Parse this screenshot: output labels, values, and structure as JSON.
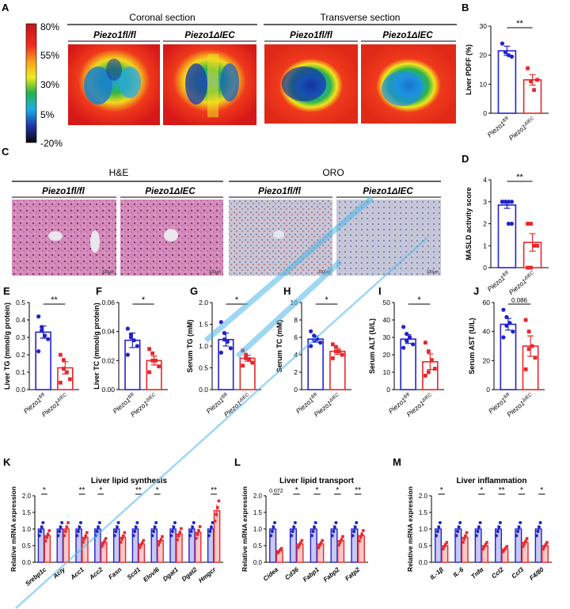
{
  "panels": {
    "A": {
      "letter": "A",
      "colorbar_ticks": [
        "80%",
        "55%",
        "30%",
        "5%",
        "-20%"
      ],
      "coronal_title": "Coronal section",
      "transverse_title": "Transverse section",
      "genotypes": [
        "Piezo1fl/fl",
        "Piezo1ΔIEC",
        "Piezo1fl/fl",
        "Piezo1ΔIEC"
      ]
    },
    "C": {
      "letter": "C",
      "he_title": "H&E",
      "oro_title": "ORO",
      "genotypes": [
        "Piezo1fl/fl",
        "Piezo1ΔIEC",
        "Piezo1fl/fl",
        "Piezo1ΔIEC"
      ],
      "scale_bars": [
        "100μm",
        "100μm",
        "100μm",
        "100μm"
      ]
    },
    "K_title": "Liver lipid synthesis",
    "L_title": "Liver lipid transport",
    "M_title": "Liver inflammation"
  },
  "chart_data": [
    {
      "id": "B",
      "type": "bar",
      "ylabel": "Liver PDFF (%)",
      "ylim": [
        0,
        30
      ],
      "yticks": [
        "0",
        "10",
        "20",
        "30"
      ],
      "categories": [
        "Piezo1fl/fl",
        "Piezo1ΔIEC"
      ],
      "values": [
        21.5,
        11.5
      ],
      "sem": [
        1.6,
        1.8
      ],
      "points": [
        [
          24,
          21,
          20,
          19.5
        ],
        [
          15.5,
          11,
          8,
          11.5
        ]
      ],
      "sig": "**"
    },
    {
      "id": "D",
      "type": "bar",
      "ylabel": "MASLD activity score",
      "ylim": [
        0,
        4
      ],
      "yticks": [
        "0",
        "1",
        "2",
        "3",
        "4"
      ],
      "categories": [
        "Piezo1fl/fl",
        "Piezo1ΔIEC"
      ],
      "values": [
        2.85,
        1.15
      ],
      "sem": [
        0.15,
        0.4
      ],
      "points": [
        [
          3,
          3,
          3,
          3,
          3,
          3,
          2,
          2
        ],
        [
          2,
          2,
          1,
          1,
          0,
          0
        ]
      ],
      "sig": "**"
    },
    {
      "id": "E",
      "type": "bar",
      "ylabel": "Liver TG (mmol/g protein)",
      "ylim": [
        0,
        0.5
      ],
      "yticks": [
        "0.0",
        "0.1",
        "0.2",
        "0.3",
        "0.4",
        "0.5"
      ],
      "categories": [
        "Piezo1fl/fl",
        "Piezo1ΔIEC"
      ],
      "values": [
        0.33,
        0.125
      ],
      "sem": [
        0.035,
        0.035
      ],
      "points": [
        [
          0.42,
          0.34,
          0.31,
          0.29,
          0.22,
          0.36
        ],
        [
          0.2,
          0.17,
          0.1,
          0.06,
          0.04,
          0.12
        ]
      ],
      "sig": "**"
    },
    {
      "id": "F",
      "type": "bar",
      "ylabel": "Liver TC (mmol/g protein)",
      "ylim": [
        0,
        0.06
      ],
      "yticks": [
        "0.00",
        "0.02",
        "0.04",
        "0.06"
      ],
      "categories": [
        "Piezo1fl/fl",
        "Piezo1ΔIEC"
      ],
      "values": [
        0.034,
        0.02
      ],
      "sem": [
        0.005,
        0.003
      ],
      "points": [
        [
          0.042,
          0.038,
          0.034,
          0.03,
          0.024,
          0.036
        ],
        [
          0.028,
          0.025,
          0.02,
          0.016,
          0.012,
          0.02
        ]
      ],
      "sig": "*"
    },
    {
      "id": "G",
      "type": "bar",
      "ylabel": "Serum TG (mM)",
      "ylim": [
        0,
        2.0
      ],
      "yticks": [
        "0.0",
        "0.5",
        "1.0",
        "1.5",
        "2.0"
      ],
      "categories": [
        "Piezo1fl/fl",
        "Piezo1ΔIEC"
      ],
      "values": [
        1.15,
        0.72
      ],
      "sem": [
        0.15,
        0.07
      ],
      "points": [
        [
          1.55,
          1.3,
          1.1,
          0.95,
          0.85,
          1.15
        ],
        [
          0.9,
          0.8,
          0.7,
          0.62,
          0.55,
          0.72
        ]
      ],
      "sig": "*"
    },
    {
      "id": "H",
      "type": "bar",
      "ylabel": "Serum TC (mM)",
      "ylim": [
        0,
        10
      ],
      "yticks": [
        "0",
        "2",
        "4",
        "6",
        "8",
        "10"
      ],
      "categories": [
        "Piezo1fl/fl",
        "Piezo1ΔIEC"
      ],
      "values": [
        5.8,
        4.4
      ],
      "sem": [
        0.35,
        0.35
      ],
      "points": [
        [
          6.7,
          6.2,
          5.8,
          5.4,
          5.0,
          5.7
        ],
        [
          5.2,
          4.9,
          4.4,
          4.0,
          3.6,
          4.4
        ]
      ],
      "sig": "*"
    },
    {
      "id": "I",
      "type": "bar",
      "ylabel": "Serum ALT (U/L)",
      "ylim": [
        0,
        50
      ],
      "yticks": [
        "0",
        "10",
        "20",
        "30",
        "40",
        "50"
      ],
      "categories": [
        "Piezo1fl/fl",
        "Piezo1ΔIEC"
      ],
      "values": [
        29,
        16
      ],
      "sem": [
        2.5,
        4.5
      ],
      "points": [
        [
          36,
          32,
          30,
          26,
          24,
          28
        ],
        [
          27,
          22,
          17,
          12,
          8,
          10
        ]
      ],
      "sig": "*"
    },
    {
      "id": "J",
      "type": "bar",
      "ylabel": "Serum AST (U/L)",
      "ylim": [
        0,
        60
      ],
      "yticks": [
        "0",
        "20",
        "40",
        "60"
      ],
      "categories": [
        "Piezo1fl/fl",
        "Piezo1ΔIEC"
      ],
      "values": [
        45,
        30
      ],
      "sem": [
        4,
        7
      ],
      "points": [
        [
          55,
          50,
          46,
          40,
          36,
          44
        ],
        [
          48,
          40,
          30,
          22,
          14,
          28
        ]
      ],
      "sig": "0.086"
    },
    {
      "id": "K",
      "type": "bar",
      "ylabel": "Relative mRNA expression",
      "ylim": [
        0,
        2.0
      ],
      "yticks": [
        "0.0",
        "0.5",
        "1.0",
        "1.5",
        "2.0"
      ],
      "categories": [
        "Srebp1c",
        "Acly",
        "Acc1",
        "Acc2",
        "Fasn",
        "Scd1",
        "Elovl6",
        "Dgat1",
        "Dgat2",
        "Hmgcr"
      ],
      "series": [
        {
          "name": "Piezo1fl/fl",
          "values": [
            1.0,
            1.0,
            1.0,
            1.0,
            1.0,
            1.0,
            1.0,
            1.0,
            1.0,
            1.0
          ]
        },
        {
          "name": "Piezo1ΔIEC",
          "values": [
            0.8,
            1.0,
            0.75,
            0.6,
            0.75,
            0.55,
            0.65,
            0.85,
            0.9,
            1.55
          ]
        }
      ],
      "sig": [
        "*",
        "",
        "**",
        "*",
        "",
        "**",
        "*",
        "",
        "",
        "**"
      ]
    },
    {
      "id": "L",
      "type": "bar",
      "ylabel": "Relative mRNA expression",
      "ylim": [
        0,
        2.0
      ],
      "yticks": [
        "0.0",
        "0.5",
        "1.0",
        "1.5",
        "2.0"
      ],
      "categories": [
        "Cidea",
        "Cd36",
        "Fabp1",
        "Fabp2",
        "Fatp2"
      ],
      "series": [
        {
          "name": "Piezo1fl/fl",
          "values": [
            1.0,
            1.0,
            1.0,
            1.0,
            1.0
          ]
        },
        {
          "name": "Piezo1ΔIEC",
          "values": [
            0.35,
            0.55,
            0.55,
            0.65,
            0.8
          ]
        }
      ],
      "sig": [
        "0.072",
        "*",
        "*",
        "*",
        "**"
      ]
    },
    {
      "id": "M",
      "type": "bar",
      "ylabel": "Relative mRNA expression",
      "ylim": [
        0,
        2.0
      ],
      "yticks": [
        "0.0",
        "0.5",
        "1.0",
        "1.5",
        "2.0"
      ],
      "categories": [
        "IL-1β",
        "IL-6",
        "Tnfα",
        "Ccl2",
        "Ccl3",
        "F4/80"
      ],
      "series": [
        {
          "name": "Piezo1fl/fl",
          "values": [
            1.0,
            1.0,
            1.0,
            1.0,
            1.0,
            1.0
          ]
        },
        {
          "name": "Piezo1ΔIEC",
          "values": [
            0.5,
            0.75,
            0.5,
            0.4,
            0.6,
            0.5
          ]
        }
      ],
      "sig": [
        "*",
        "",
        "*",
        "**",
        "*",
        "*"
      ]
    }
  ],
  "colors": {
    "wt": "#2222cc",
    "ko": "#e8272b",
    "watermark": "#4fb7e8"
  }
}
